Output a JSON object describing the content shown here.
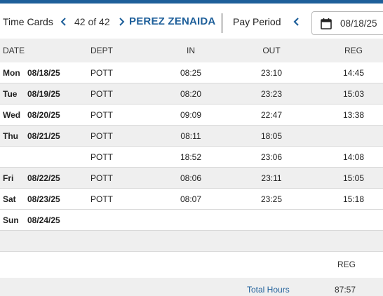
{
  "header": {
    "title": "Time Cards",
    "counter": "42 of 42",
    "employee_name": "PEREZ ZENAIDA",
    "pay_period_label": "Pay Period",
    "pay_period_date": "08/18/25",
    "icons": {
      "prev": "chevron-left-icon",
      "next": "chevron-right-icon",
      "calendar": "calendar-icon"
    },
    "accent_color": "#1e5f9a"
  },
  "table": {
    "columns": [
      "DATE",
      "DEPT",
      "IN",
      "OUT",
      "REG"
    ],
    "rows": [
      {
        "day": "Mon",
        "date": "08/18/25",
        "dept": "POTT",
        "in": "08:25",
        "out": "23:10",
        "reg": "14:45"
      },
      {
        "day": "Tue",
        "date": "08/19/25",
        "dept": "POTT",
        "in": "08:20",
        "out": "23:23",
        "reg": "15:03"
      },
      {
        "day": "Wed",
        "date": "08/20/25",
        "dept": "POTT",
        "in": "09:09",
        "out": "22:47",
        "reg": "13:38"
      },
      {
        "day": "Thu",
        "date": "08/21/25",
        "dept": "POTT",
        "in": "08:11",
        "out": "18:05",
        "reg": ""
      },
      {
        "day": "",
        "date": "",
        "dept": "POTT",
        "in": "18:52",
        "out": "23:06",
        "reg": "14:08"
      },
      {
        "day": "Fri",
        "date": "08/22/25",
        "dept": "POTT",
        "in": "08:06",
        "out": "23:11",
        "reg": "15:05"
      },
      {
        "day": "Sat",
        "date": "08/23/25",
        "dept": "POTT",
        "in": "08:07",
        "out": "23:25",
        "reg": "15:18"
      },
      {
        "day": "Sun",
        "date": "08/24/25",
        "dept": "",
        "in": "",
        "out": "",
        "reg": ""
      }
    ]
  },
  "summary": {
    "column_label": "REG",
    "total_label": "Total Hours",
    "total_reg": "87:57"
  }
}
